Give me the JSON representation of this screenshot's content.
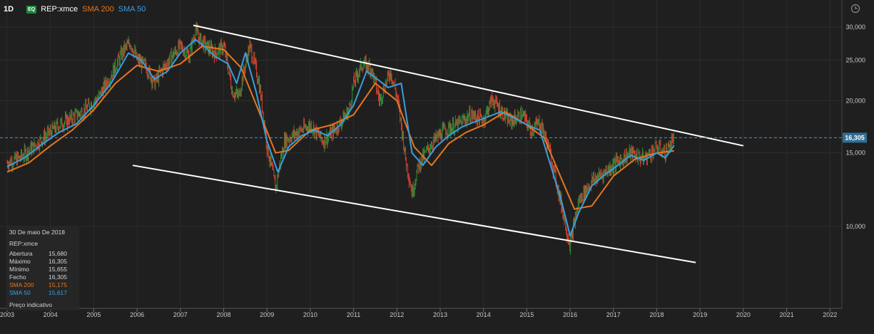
{
  "toolbar": {
    "timeframe": "1D",
    "badge": "EQ",
    "symbol": "REP:xmce",
    "sma200_label": "SMA 200",
    "sma50_label": "SMA 50"
  },
  "colors": {
    "background": "#1f1f1f",
    "price_up": "#2e8b3a",
    "price_down": "#d9422f",
    "sma200": "#e8761e",
    "sma50": "#3a9fde",
    "trendline": "#ffffff",
    "last_price_tag": "#2f6f95"
  },
  "info_panel": {
    "date": "30 De maio De 2018",
    "symbol": "REP:xmce",
    "rows": [
      {
        "label": "Abertura",
        "value": "15,680"
      },
      {
        "label": "Máximo",
        "value": "16,305"
      },
      {
        "label": "Mínimo",
        "value": "15,655"
      },
      {
        "label": "Fecho",
        "value": "16,305"
      },
      {
        "label": "SMA 200",
        "value": "15,175"
      },
      {
        "label": "SMA 50",
        "value": "15,617"
      }
    ],
    "note": "Preço indicativo"
  },
  "chart_data": {
    "type": "line",
    "y_scale": "log",
    "grid": true,
    "ylim": [
      7.8,
      32
    ],
    "xlim": [
      2003.0,
      2022.0
    ],
    "x_ticks": [
      "2003",
      "2004",
      "2005",
      "2006",
      "2007",
      "2008",
      "2009",
      "2010",
      "2011",
      "2012",
      "2013",
      "2014",
      "2015",
      "2016",
      "2017",
      "2018",
      "2019",
      "2020",
      "2021",
      "2022"
    ],
    "y_ticks": [
      {
        "value": 30,
        "label": "30,000"
      },
      {
        "value": 25,
        "label": "25,000"
      },
      {
        "value": 20,
        "label": "20,000"
      },
      {
        "value": 15,
        "label": "15,000"
      },
      {
        "value": 10,
        "label": "10,000"
      }
    ],
    "last_price": {
      "value": 16.305,
      "label": "16,305"
    },
    "price": {
      "x": [
        2003.0,
        2003.3,
        2003.6,
        2003.9,
        2004.2,
        2004.5,
        2004.8,
        2005.1,
        2005.4,
        2005.7,
        2005.85,
        2006.0,
        2006.2,
        2006.4,
        2006.55,
        2006.8,
        2007.0,
        2007.2,
        2007.35,
        2007.45,
        2007.6,
        2007.8,
        2008.0,
        2008.2,
        2008.35,
        2008.6,
        2008.8,
        2009.0,
        2009.2,
        2009.4,
        2009.7,
        2010.0,
        2010.3,
        2010.6,
        2010.9,
        2011.0,
        2011.2,
        2011.4,
        2011.6,
        2011.85,
        2012.0,
        2012.2,
        2012.35,
        2012.5,
        2012.8,
        2013.1,
        2013.4,
        2013.7,
        2014.0,
        2014.2,
        2014.35,
        2014.6,
        2014.9,
        2015.1,
        2015.3,
        2015.5,
        2015.7,
        2015.9,
        2016.0,
        2016.2,
        2016.5,
        2016.8,
        2017.1,
        2017.4,
        2017.7,
        2018.0,
        2018.2,
        2018.4
      ],
      "y": [
        14.2,
        14.6,
        15.5,
        16.5,
        17.5,
        18.2,
        19.0,
        20.3,
        23.0,
        26.5,
        27.5,
        25.0,
        24.2,
        22.0,
        23.5,
        25.5,
        27.0,
        25.5,
        29.5,
        28.0,
        27.0,
        26.0,
        27.0,
        21.0,
        20.5,
        27.0,
        22.5,
        15.5,
        12.3,
        16.0,
        16.8,
        17.5,
        16.0,
        17.2,
        19.0,
        22.0,
        24.5,
        24.0,
        20.0,
        23.5,
        20.5,
        14.5,
        12.0,
        14.0,
        15.8,
        17.0,
        17.5,
        18.5,
        18.0,
        20.2,
        19.2,
        17.8,
        18.5,
        17.0,
        17.8,
        15.5,
        12.5,
        10.0,
        9.0,
        11.5,
        12.8,
        13.5,
        14.3,
        15.0,
        14.5,
        15.5,
        15.0,
        16.305
      ]
    },
    "series": [
      {
        "name": "SMA 200",
        "x": [
          2003.0,
          2003.5,
          2004.0,
          2004.5,
          2005.0,
          2005.5,
          2006.0,
          2006.5,
          2007.0,
          2007.5,
          2008.0,
          2008.4,
          2008.8,
          2009.2,
          2009.5,
          2010.0,
          2010.5,
          2011.0,
          2011.5,
          2012.0,
          2012.4,
          2012.8,
          2013.2,
          2013.6,
          2014.0,
          2014.5,
          2015.0,
          2015.4,
          2015.8,
          2016.1,
          2016.5,
          2017.0,
          2017.5,
          2018.0,
          2018.4
        ],
        "y": [
          13.5,
          14.2,
          15.6,
          17.0,
          19.0,
          22.0,
          24.3,
          23.5,
          24.5,
          27.0,
          26.5,
          24.0,
          19.0,
          15.0,
          15.2,
          17.0,
          17.5,
          18.5,
          22.0,
          20.0,
          15.5,
          14.0,
          15.8,
          16.8,
          17.5,
          18.8,
          17.5,
          16.3,
          13.0,
          11.0,
          11.2,
          13.2,
          14.5,
          15.0,
          15.175
        ]
      },
      {
        "name": "SMA 50",
        "x": [
          2003.0,
          2003.4,
          2003.8,
          2004.2,
          2004.6,
          2005.0,
          2005.4,
          2005.8,
          2006.1,
          2006.4,
          2006.7,
          2007.0,
          2007.35,
          2007.55,
          2007.8,
          2008.1,
          2008.3,
          2008.5,
          2008.75,
          2009.0,
          2009.25,
          2009.5,
          2009.8,
          2010.1,
          2010.4,
          2010.7,
          2011.0,
          2011.3,
          2011.55,
          2011.8,
          2012.1,
          2012.35,
          2012.6,
          2012.9,
          2013.2,
          2013.5,
          2013.8,
          2014.1,
          2014.4,
          2014.7,
          2015.0,
          2015.3,
          2015.55,
          2015.8,
          2016.0,
          2016.2,
          2016.5,
          2016.8,
          2017.1,
          2017.4,
          2017.7,
          2018.0,
          2018.2,
          2018.4
        ],
        "y": [
          13.9,
          14.6,
          15.7,
          16.8,
          17.6,
          19.5,
          22.0,
          26.0,
          25.0,
          22.5,
          23.5,
          26.0,
          28.0,
          27.0,
          25.5,
          24.5,
          22.0,
          26.0,
          21.0,
          16.0,
          13.5,
          15.5,
          16.5,
          17.0,
          16.5,
          17.5,
          19.5,
          23.5,
          22.5,
          21.5,
          22.0,
          15.0,
          14.0,
          15.5,
          16.5,
          17.3,
          17.8,
          18.3,
          18.8,
          18.2,
          17.5,
          17.0,
          14.0,
          11.5,
          9.5,
          10.8,
          12.5,
          13.3,
          14.0,
          14.8,
          14.4,
          15.0,
          14.6,
          15.617
        ]
      },
      {
        "name": "trendline-upper",
        "x": [
          2007.3,
          2020.0
        ],
        "y": [
          30.3,
          15.6
        ]
      },
      {
        "name": "trendline-lower",
        "x": [
          2005.9,
          2018.9
        ],
        "y": [
          14.0,
          8.2
        ]
      }
    ]
  }
}
